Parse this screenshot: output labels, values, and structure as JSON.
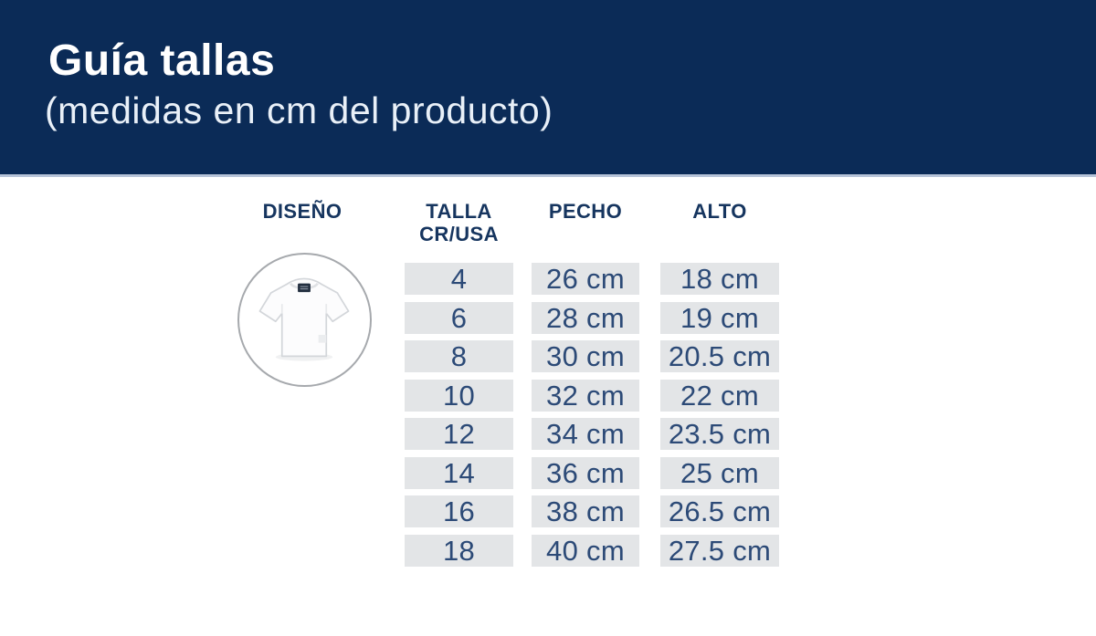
{
  "header": {
    "title": "Guía tallas",
    "subtitle": "(medidas en cm del producto)",
    "bg_color": "#0b2b57",
    "divider_color": "#b6c3d8",
    "text_color": "#ffffff"
  },
  "table": {
    "header_text_color": "#16355f",
    "cell_bg_color": "#e3e5e7",
    "cell_text_color": "#2c4a77",
    "columns": [
      {
        "id": "diseno",
        "label": "DISEÑO"
      },
      {
        "id": "talla",
        "label": "TALLA",
        "label_line2": "CR/USA"
      },
      {
        "id": "pecho",
        "label": "PECHO"
      },
      {
        "id": "alto",
        "label": "ALTO"
      }
    ],
    "rows": [
      {
        "talla": "4",
        "pecho": "26 cm",
        "alto": "18 cm"
      },
      {
        "talla": "6",
        "pecho": "28 cm",
        "alto": "19 cm"
      },
      {
        "talla": "8",
        "pecho": "30 cm",
        "alto": "20.5 cm"
      },
      {
        "talla": "10",
        "pecho": "32 cm",
        "alto": "22 cm"
      },
      {
        "talla": "12",
        "pecho": "34 cm",
        "alto": "23.5 cm"
      },
      {
        "talla": "14",
        "pecho": "36 cm",
        "alto": "25 cm"
      },
      {
        "talla": "16",
        "pecho": "38 cm",
        "alto": "26.5 cm"
      },
      {
        "talla": "18",
        "pecho": "40 cm",
        "alto": "27.5 cm"
      }
    ]
  },
  "design": {
    "icon": "white-tshirt-photo",
    "circle_border_color": "#a6a9ad"
  },
  "chart_data": {
    "type": "table",
    "title": "Guía tallas (medidas en cm del producto)",
    "columns": [
      "TALLA CR/USA",
      "PECHO",
      "ALTO"
    ],
    "sizes": [
      4,
      6,
      8,
      10,
      12,
      14,
      16,
      18
    ],
    "pecho_cm": [
      26,
      28,
      30,
      32,
      34,
      36,
      38,
      40
    ],
    "alto_cm": [
      18,
      19,
      20.5,
      22,
      23.5,
      25,
      26.5,
      27.5
    ]
  }
}
